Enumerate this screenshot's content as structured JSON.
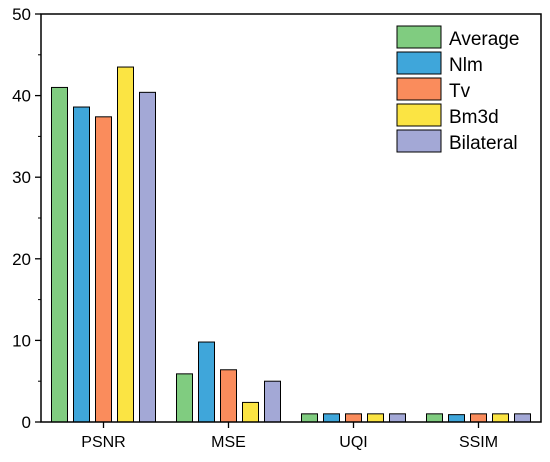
{
  "chart_data": {
    "type": "bar",
    "title": "",
    "xlabel": "",
    "ylabel": "",
    "ylim": [
      0,
      50
    ],
    "yticks": [
      0,
      10,
      20,
      30,
      40,
      50
    ],
    "grid": false,
    "legend_position": "top-right",
    "categories": [
      "PSNR",
      "MSE",
      "UQI",
      "SSIM"
    ],
    "series": [
      {
        "name": "Average",
        "color": "#80CC80",
        "values": [
          41.0,
          5.9,
          1.0,
          1.0
        ]
      },
      {
        "name": "Nlm",
        "color": "#3FA6DA",
        "values": [
          38.6,
          9.8,
          1.0,
          0.9
        ]
      },
      {
        "name": "Tv",
        "color": "#FA8C5C",
        "values": [
          37.4,
          6.4,
          1.0,
          1.0
        ]
      },
      {
        "name": "Bm3d",
        "color": "#FBE443",
        "values": [
          43.5,
          2.4,
          1.0,
          1.0
        ]
      },
      {
        "name": "Bilateral",
        "color": "#A3A8D6",
        "values": [
          40.4,
          5.0,
          1.0,
          1.0
        ]
      }
    ]
  }
}
